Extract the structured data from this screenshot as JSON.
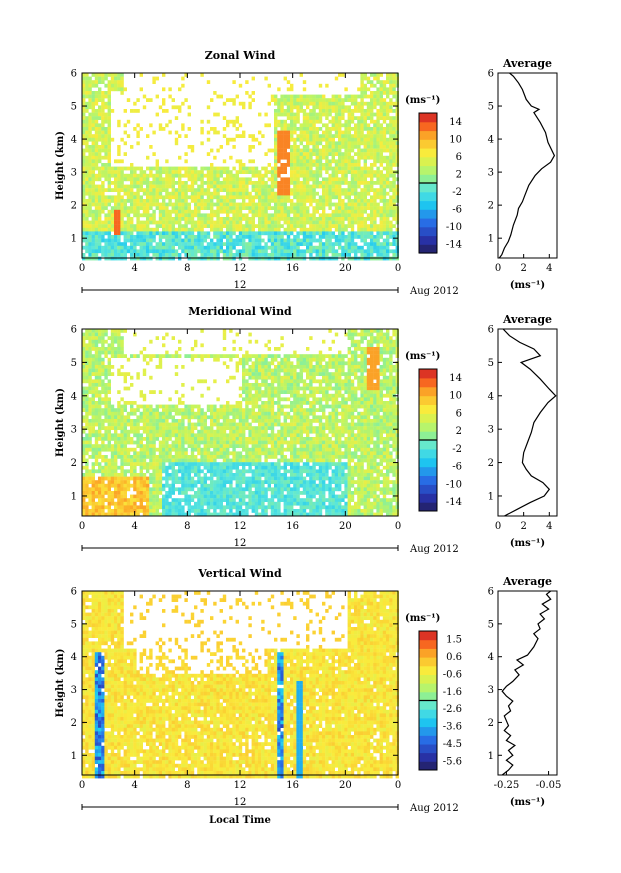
{
  "chart_data": [
    {
      "type": "heatmap",
      "title": "Zonal Wind",
      "ylabel": "Height (km)",
      "yticks": [
        "1",
        "2",
        "3",
        "4",
        "5",
        "6"
      ],
      "xticks": [
        "0",
        "4",
        "8",
        "12",
        "16",
        "20",
        "0"
      ],
      "date_marker": "12",
      "date_label": "Aug 2012",
      "ylim": [
        0.4,
        6.0
      ],
      "xlim": [
        0,
        24
      ],
      "colorbar_unit": "(ms⁻¹)",
      "colorbar_ticks": [
        "14",
        "10",
        "6",
        "2",
        "-2",
        "-6",
        "-10",
        "-14"
      ],
      "colorbar_range": [
        -16,
        16
      ],
      "grid": false
    },
    {
      "type": "line",
      "title": "Average",
      "xlabel": "(ms⁻¹)",
      "xticks": [
        "0",
        "2",
        "4"
      ],
      "yticks": [
        "1",
        "2",
        "3",
        "4",
        "5",
        "6"
      ],
      "xlim": [
        0,
        4.6
      ],
      "ylim": [
        0.4,
        6.0
      ],
      "points": [
        [
          0.1,
          0.4
        ],
        [
          0.3,
          0.5
        ],
        [
          0.5,
          0.7
        ],
        [
          0.8,
          0.9
        ],
        [
          1.0,
          1.1
        ],
        [
          1.2,
          1.4
        ],
        [
          1.5,
          1.7
        ],
        [
          1.6,
          1.9
        ],
        [
          1.9,
          2.1
        ],
        [
          2.1,
          2.3
        ],
        [
          2.4,
          2.6
        ],
        [
          2.9,
          2.9
        ],
        [
          3.4,
          3.1
        ],
        [
          4.1,
          3.3
        ],
        [
          4.4,
          3.5
        ],
        [
          3.9,
          3.9
        ],
        [
          3.7,
          4.2
        ],
        [
          3.3,
          4.5
        ],
        [
          2.8,
          4.8
        ],
        [
          3.2,
          4.9
        ],
        [
          2.6,
          5.0
        ],
        [
          2.2,
          5.2
        ],
        [
          1.9,
          5.5
        ],
        [
          1.6,
          5.7
        ],
        [
          1.2,
          5.9
        ],
        [
          0.9,
          6.0
        ]
      ]
    },
    {
      "type": "heatmap",
      "title": "Meridional Wind",
      "ylabel": "Height (km)",
      "yticks": [
        "1",
        "2",
        "3",
        "4",
        "5",
        "6"
      ],
      "xticks": [
        "0",
        "4",
        "8",
        "12",
        "16",
        "20",
        "0"
      ],
      "date_marker": "12",
      "date_label": "Aug 2012",
      "ylim": [
        0.4,
        6.0
      ],
      "xlim": [
        0,
        24
      ],
      "colorbar_unit": "(ms⁻¹)",
      "colorbar_ticks": [
        "14",
        "10",
        "6",
        "2",
        "-2",
        "-6",
        "-10",
        "-14"
      ],
      "colorbar_range": [
        -16,
        16
      ],
      "grid": false
    },
    {
      "type": "line",
      "title": "Average",
      "xlabel": "(ms⁻¹)",
      "xticks": [
        "0",
        "2",
        "4"
      ],
      "yticks": [
        "1",
        "2",
        "3",
        "4",
        "5",
        "6"
      ],
      "xlim": [
        0,
        4.6
      ],
      "ylim": [
        0.4,
        6.0
      ],
      "points": [
        [
          0.5,
          0.4
        ],
        [
          1.5,
          0.6
        ],
        [
          2.5,
          0.8
        ],
        [
          3.6,
          1.0
        ],
        [
          4.0,
          1.2
        ],
        [
          3.5,
          1.4
        ],
        [
          2.6,
          1.6
        ],
        [
          2.2,
          1.8
        ],
        [
          1.9,
          2.0
        ],
        [
          2.0,
          2.3
        ],
        [
          2.3,
          2.6
        ],
        [
          2.6,
          2.9
        ],
        [
          2.8,
          3.2
        ],
        [
          3.3,
          3.5
        ],
        [
          3.9,
          3.8
        ],
        [
          4.5,
          4.0
        ],
        [
          4.0,
          4.2
        ],
        [
          3.3,
          4.5
        ],
        [
          2.5,
          4.8
        ],
        [
          1.8,
          5.0
        ],
        [
          3.3,
          5.2
        ],
        [
          2.8,
          5.4
        ],
        [
          1.7,
          5.6
        ],
        [
          0.9,
          5.8
        ],
        [
          0.4,
          6.0
        ]
      ]
    },
    {
      "type": "heatmap",
      "title": "Vertical Wind",
      "ylabel": "Height (km)",
      "xlabel": "Local Time",
      "yticks": [
        "1",
        "2",
        "3",
        "4",
        "5",
        "6"
      ],
      "xticks": [
        "0",
        "4",
        "8",
        "12",
        "16",
        "20",
        "0"
      ],
      "date_marker": "12",
      "date_label": "Aug 2012",
      "ylim": [
        0.4,
        6.0
      ],
      "xlim": [
        0,
        24
      ],
      "colorbar_unit": "(ms⁻¹)",
      "colorbar_ticks": [
        "1.5",
        "0.6",
        "-0.6",
        "-1.6",
        "-2.6",
        "-3.6",
        "-4.5",
        "-5.6"
      ],
      "colorbar_range": [
        -6.0,
        2.0
      ],
      "grid": false
    },
    {
      "type": "line",
      "title": "Average",
      "xlabel": "(ms⁻¹)",
      "xticks": [
        "-0.25",
        "-0.05"
      ],
      "yticks": [
        "1",
        "2",
        "3",
        "4",
        "5",
        "6"
      ],
      "xlim": [
        -0.29,
        -0.01
      ],
      "ylim": [
        0.4,
        6.0
      ],
      "points": [
        [
          -0.27,
          0.4
        ],
        [
          -0.24,
          0.55
        ],
        [
          -0.22,
          0.7
        ],
        [
          -0.25,
          0.85
        ],
        [
          -0.22,
          1.0
        ],
        [
          -0.24,
          1.15
        ],
        [
          -0.21,
          1.3
        ],
        [
          -0.25,
          1.45
        ],
        [
          -0.23,
          1.6
        ],
        [
          -0.26,
          1.75
        ],
        [
          -0.24,
          1.9
        ],
        [
          -0.25,
          2.05
        ],
        [
          -0.26,
          2.2
        ],
        [
          -0.23,
          2.35
        ],
        [
          -0.24,
          2.5
        ],
        [
          -0.22,
          2.65
        ],
        [
          -0.25,
          2.8
        ],
        [
          -0.27,
          2.95
        ],
        [
          -0.25,
          3.1
        ],
        [
          -0.22,
          3.25
        ],
        [
          -0.19,
          3.45
        ],
        [
          -0.21,
          3.6
        ],
        [
          -0.17,
          3.75
        ],
        [
          -0.2,
          3.9
        ],
        [
          -0.15,
          4.05
        ],
        [
          -0.12,
          4.3
        ],
        [
          -0.1,
          4.55
        ],
        [
          -0.12,
          4.7
        ],
        [
          -0.09,
          4.85
        ],
        [
          -0.1,
          5.0
        ],
        [
          -0.07,
          5.15
        ],
        [
          -0.09,
          5.3
        ],
        [
          -0.05,
          5.45
        ],
        [
          -0.08,
          5.6
        ],
        [
          -0.04,
          5.75
        ],
        [
          -0.06,
          5.9
        ],
        [
          -0.04,
          6.0
        ]
      ]
    }
  ]
}
